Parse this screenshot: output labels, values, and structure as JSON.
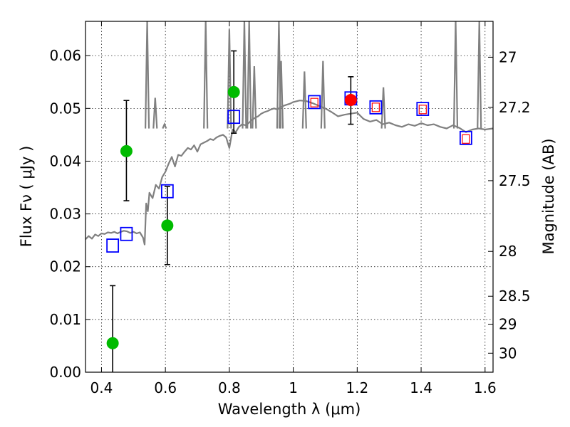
{
  "chart_data": {
    "type": "scatter",
    "title": "",
    "xlabel": "Wavelength  λ (μm)",
    "ylabel": "Flux  Fν  ( μJy )",
    "ylabel_right": "Magnitude (AB)",
    "xlim": [
      0.35,
      1.625
    ],
    "ylim": [
      0.0,
      0.0665
    ],
    "grid": true,
    "x_ticks": [
      0.4,
      0.6,
      0.8,
      1.0,
      1.2,
      1.4,
      1.6
    ],
    "x_tick_labels": [
      "0.4",
      "0.6",
      "0.8",
      "1",
      "1.2",
      "1.4",
      "1.6"
    ],
    "y_ticks": [
      0.0,
      0.01,
      0.02,
      0.03,
      0.04,
      0.05,
      0.06
    ],
    "y_tick_labels": [
      "0.00",
      "0.01",
      "0.02",
      "0.03",
      "0.04",
      "0.05",
      "0.06"
    ],
    "right_ticks": [
      {
        "flux": 0.0597,
        "label": "27"
      },
      {
        "flux": 0.0502,
        "label": "27.2"
      },
      {
        "flux": 0.0363,
        "label": "27.5"
      },
      {
        "flux": 0.0229,
        "label": "28"
      },
      {
        "flux": 0.0144,
        "label": "28.5"
      },
      {
        "flux": 0.0091,
        "label": "29"
      },
      {
        "flux": 0.0036,
        "label": "30"
      }
    ],
    "series": [
      {
        "name": "model spectrum",
        "kind": "line",
        "color": "#808080",
        "x": [
          0.35,
          0.36,
          0.37,
          0.38,
          0.39,
          0.4,
          0.41,
          0.42,
          0.43,
          0.44,
          0.45,
          0.46,
          0.47,
          0.48,
          0.49,
          0.5,
          0.51,
          0.52,
          0.53,
          0.535,
          0.54,
          0.545,
          0.55,
          0.56,
          0.57,
          0.58,
          0.59,
          0.6,
          0.61,
          0.62,
          0.63,
          0.64,
          0.65,
          0.66,
          0.67,
          0.68,
          0.69,
          0.7,
          0.71,
          0.72,
          0.73,
          0.74,
          0.75,
          0.76,
          0.77,
          0.78,
          0.79,
          0.8,
          0.81,
          0.82,
          0.83,
          0.84,
          0.85,
          0.86,
          0.87,
          0.88,
          0.89,
          0.9,
          0.91,
          0.92,
          0.93,
          0.94,
          0.95,
          0.96,
          0.97,
          0.98,
          0.99,
          1.0,
          1.02,
          1.04,
          1.06,
          1.08,
          1.1,
          1.12,
          1.14,
          1.16,
          1.18,
          1.2,
          1.22,
          1.24,
          1.26,
          1.28,
          1.3,
          1.32,
          1.34,
          1.36,
          1.38,
          1.4,
          1.42,
          1.44,
          1.46,
          1.48,
          1.5,
          1.52,
          1.54,
          1.56,
          1.58,
          1.6,
          1.625
        ],
        "y": [
          0.0252,
          0.0258,
          0.0253,
          0.0261,
          0.0258,
          0.0263,
          0.0262,
          0.0265,
          0.0264,
          0.0266,
          0.0263,
          0.0266,
          0.0268,
          0.0267,
          0.0264,
          0.0266,
          0.0263,
          0.0265,
          0.0255,
          0.0242,
          0.032,
          0.0305,
          0.034,
          0.033,
          0.0355,
          0.0348,
          0.037,
          0.038,
          0.0395,
          0.0408,
          0.039,
          0.0412,
          0.041,
          0.0418,
          0.0425,
          0.0422,
          0.043,
          0.0418,
          0.0432,
          0.0435,
          0.0438,
          0.0442,
          0.044,
          0.0445,
          0.0448,
          0.045,
          0.0445,
          0.0425,
          0.046,
          0.0455,
          0.0465,
          0.047,
          0.0468,
          0.0472,
          0.0478,
          0.0482,
          0.0485,
          0.049,
          0.0493,
          0.0495,
          0.0498,
          0.05,
          0.0498,
          0.0502,
          0.0505,
          0.0507,
          0.0509,
          0.0512,
          0.0515,
          0.0514,
          0.051,
          0.0505,
          0.05,
          0.0493,
          0.0485,
          0.0488,
          0.049,
          0.0492,
          0.048,
          0.0475,
          0.0478,
          0.047,
          0.0473,
          0.0468,
          0.0465,
          0.047,
          0.0467,
          0.0472,
          0.0468,
          0.047,
          0.0465,
          0.0462,
          0.0468,
          0.0463,
          0.0455,
          0.046,
          0.0462,
          0.046,
          0.0462
        ]
      },
      {
        "name": "emission lines",
        "kind": "spikes",
        "color": "#808080",
        "x": [
          0.543,
          0.568,
          0.597,
          0.726,
          0.8,
          0.847,
          0.862,
          0.878,
          0.955,
          0.962,
          1.035,
          1.093,
          1.282,
          1.508,
          1.582
        ],
        "y": [
          0.0665,
          0.052,
          0.047,
          0.0665,
          0.065,
          0.0665,
          0.0665,
          0.058,
          0.0665,
          0.059,
          0.057,
          0.059,
          0.054,
          0.0665,
          0.0665
        ]
      },
      {
        "name": "model photometry",
        "kind": "open-square",
        "color": "#0000ff",
        "x": [
          0.435,
          0.478,
          0.606,
          0.814,
          1.066,
          1.18,
          1.258,
          1.405,
          1.54
        ],
        "y": [
          0.024,
          0.0262,
          0.0343,
          0.0484,
          0.0512,
          0.0519,
          0.0502,
          0.0499,
          0.0444
        ]
      },
      {
        "name": "observed flux (green)",
        "kind": "filled-circle",
        "color": "#00bb00",
        "x": [
          0.435,
          0.478,
          0.606,
          0.814
        ],
        "y": [
          0.0055,
          0.0419,
          0.0278,
          0.0531
        ],
        "yerr_low": [
          0.0055,
          0.0094,
          0.0074,
          0.0078
        ],
        "yerr_high": [
          0.0109,
          0.0096,
          0.0074,
          0.0078
        ]
      },
      {
        "name": "observed flux (red)",
        "kind": "filled-circle",
        "color": "#ff0000",
        "x": [
          1.066,
          1.18,
          1.258,
          1.405,
          1.54
        ],
        "y": [
          0.0511,
          0.0516,
          0.0502,
          0.0498,
          0.0442
        ],
        "marker_size": [
          "small",
          "large",
          "small",
          "small",
          "small"
        ],
        "yerr_low": [
          0,
          0.0046,
          0,
          0,
          0
        ],
        "yerr_high": [
          0,
          0.0044,
          0,
          0,
          0
        ]
      }
    ]
  }
}
